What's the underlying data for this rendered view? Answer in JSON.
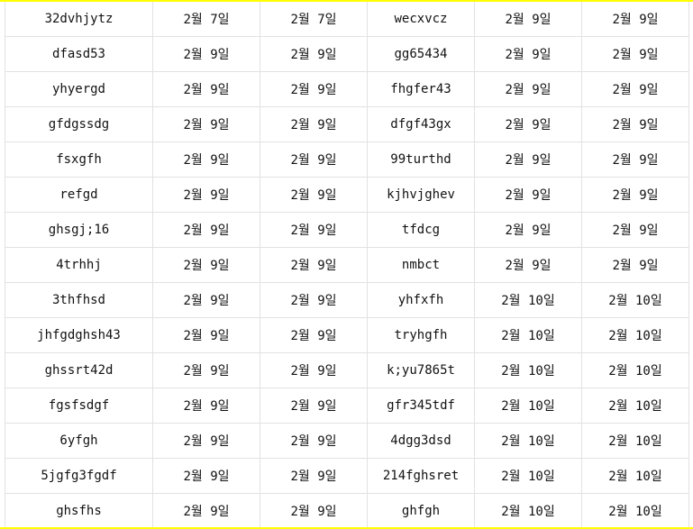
{
  "colors": {
    "highlight_border": "#ffff00",
    "grid": "#e2e2e2"
  },
  "rows": [
    [
      "32dvhjytz",
      "2월 7일",
      "2월 7일",
      "wecxvcz",
      "2월 9일",
      "2월 9일"
    ],
    [
      "dfasd53",
      "2월 9일",
      "2월 9일",
      "gg65434",
      "2월 9일",
      "2월 9일"
    ],
    [
      "yhyergd",
      "2월 9일",
      "2월 9일",
      "fhgfer43",
      "2월 9일",
      "2월 9일"
    ],
    [
      "gfdgssdg",
      "2월 9일",
      "2월 9일",
      "dfgf43gx",
      "2월 9일",
      "2월 9일"
    ],
    [
      "fsxgfh",
      "2월 9일",
      "2월 9일",
      "99turthd",
      "2월 9일",
      "2월 9일"
    ],
    [
      "refgd",
      "2월 9일",
      "2월 9일",
      "kjhvjghev",
      "2월 9일",
      "2월 9일"
    ],
    [
      "ghsgj;16",
      "2월 9일",
      "2월 9일",
      "tfdcg",
      "2월 9일",
      "2월 9일"
    ],
    [
      "4trhhj",
      "2월 9일",
      "2월 9일",
      "nmbct",
      "2월 9일",
      "2월 9일"
    ],
    [
      "3thfhsd",
      "2월 9일",
      "2월 9일",
      "yhfxfh",
      "2월 10일",
      "2월 10일"
    ],
    [
      "jhfgdghsh43",
      "2월 9일",
      "2월 9일",
      "tryhgfh",
      "2월 10일",
      "2월 10일"
    ],
    [
      "ghssrt42d",
      "2월 9일",
      "2월 9일",
      "k;yu7865t",
      "2월 10일",
      "2월 10일"
    ],
    [
      "fgsfsdgf",
      "2월 9일",
      "2월 9일",
      "gfr345tdf",
      "2월 10일",
      "2월 10일"
    ],
    [
      "6yfgh",
      "2월 9일",
      "2월 9일",
      "4dgg3dsd",
      "2월 10일",
      "2월 10일"
    ],
    [
      "5jgfg3fgdf",
      "2월 9일",
      "2월 9일",
      "214fghsret",
      "2월 10일",
      "2월 10일"
    ],
    [
      "ghsfhs",
      "2월 9일",
      "2월 9일",
      "ghfgh",
      "2월 10일",
      "2월 10일"
    ]
  ]
}
